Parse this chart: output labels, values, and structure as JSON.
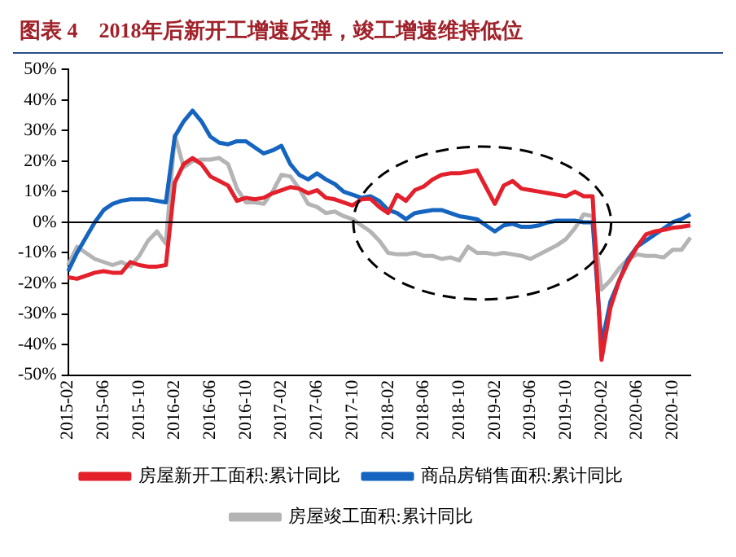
{
  "chart_data": {
    "type": "line",
    "title": "图表 4　2018年后新开工增速反弹，竣工增速维持低位",
    "categories": [
      "2015-02",
      null,
      null,
      null,
      "2015-06",
      null,
      null,
      null,
      "2015-10",
      null,
      null,
      null,
      "2016-02",
      null,
      null,
      null,
      "2016-06",
      null,
      null,
      null,
      "2016-10",
      null,
      null,
      null,
      "2017-02",
      null,
      null,
      null,
      "2017-06",
      null,
      null,
      null,
      "2017-10",
      null,
      null,
      null,
      "2018-02",
      null,
      null,
      null,
      "2018-06",
      null,
      null,
      null,
      "2018-10",
      null,
      null,
      null,
      "2019-02",
      null,
      null,
      null,
      "2019-06",
      null,
      null,
      null,
      "2019-10",
      null,
      null,
      null,
      "2020-02",
      null,
      null,
      null,
      "2020-06",
      null,
      null,
      null,
      "2020-10",
      null,
      null
    ],
    "series": [
      {
        "name": "房屋新开工面积:累计同比",
        "color": "#e3202b",
        "values": [
          -18,
          -18.5,
          -17.5,
          -16.5,
          -16,
          -16.5,
          -16.5,
          -13,
          -14,
          -14.5,
          -14.5,
          -14,
          13,
          19,
          21,
          19,
          15,
          13.5,
          12,
          7,
          8,
          7.5,
          8,
          9.5,
          10.5,
          11.5,
          11,
          9.5,
          10.5,
          8,
          7.5,
          6.5,
          5.5,
          7.5,
          7.7,
          5,
          3,
          9,
          7,
          10.5,
          11.7,
          14,
          15.5,
          16,
          16,
          16.5,
          17,
          11.5,
          6,
          12,
          13.5,
          11,
          10.5,
          10,
          9.5,
          9,
          8.5,
          10,
          8.5,
          8.5,
          -45,
          -28,
          -19,
          -13,
          -8,
          -4,
          -3,
          -2.5,
          -1.8,
          -1.5,
          -1
        ]
      },
      {
        "name": "商品房销售面积:累计同比",
        "color": "#1565c0",
        "values": [
          -16,
          -10,
          -5,
          0,
          4,
          6,
          7,
          7.5,
          7.5,
          7.5,
          7,
          6.5,
          28,
          33,
          36.5,
          33,
          28,
          26,
          25.5,
          26.5,
          26.5,
          24.5,
          22.5,
          23.5,
          25,
          19,
          15.5,
          14,
          16,
          14,
          12.5,
          10,
          9,
          8,
          8.5,
          7,
          4,
          3,
          1,
          3,
          3.5,
          4,
          4,
          3,
          2,
          1.5,
          1,
          -1,
          -3,
          -1,
          -0.5,
          -1.5,
          -1.5,
          -1,
          0,
          0.5,
          0.5,
          0.5,
          0,
          0,
          -40,
          -26,
          -19,
          -12,
          -8,
          -6,
          -4,
          -2,
          0,
          1,
          2.6
        ]
      },
      {
        "name": "房屋竣工面积:累计同比",
        "color": "#b4b4b4",
        "values": [
          -14,
          -8,
          -10,
          -12,
          -13,
          -14,
          -13,
          -14.5,
          -11,
          -6,
          -3,
          -7,
          28.5,
          18,
          20,
          20.5,
          20.5,
          21,
          19,
          11,
          6.5,
          6.5,
          6,
          10,
          15.5,
          15,
          11,
          6,
          5,
          3,
          3.5,
          2,
          1,
          -1,
          -3,
          -6,
          -10,
          -10.5,
          -10.5,
          -10,
          -11,
          -11,
          -12,
          -11.5,
          -12.5,
          -8,
          -10,
          -10,
          -10.5,
          -10,
          -10.5,
          -11,
          -12,
          -10.5,
          -9,
          -7.5,
          -5.5,
          -2,
          2.6,
          2,
          -22,
          -19,
          -15,
          -12,
          -10.5,
          -11,
          -11,
          -11.5,
          -9,
          -9,
          -5
        ]
      }
    ],
    "ylim": [
      -50,
      50
    ],
    "yticks": [
      {
        "value": -50,
        "label": "-50%"
      },
      {
        "value": -40,
        "label": "-40%"
      },
      {
        "value": -30,
        "label": "-30%"
      },
      {
        "value": -20,
        "label": "-20%"
      },
      {
        "value": -10,
        "label": "-10%"
      },
      {
        "value": 0,
        "label": "0%"
      },
      {
        "value": 10,
        "label": "10%"
      },
      {
        "value": 20,
        "label": "20%"
      },
      {
        "value": 30,
        "label": "30%"
      },
      {
        "value": 40,
        "label": "40%"
      },
      {
        "value": 50,
        "label": "50%"
      }
    ],
    "ref_lines": [
      {
        "axis": "y",
        "value": 0,
        "color": "#000000"
      }
    ],
    "grid": false,
    "legend": "bottom",
    "marker": "none",
    "line_style": "solid"
  }
}
